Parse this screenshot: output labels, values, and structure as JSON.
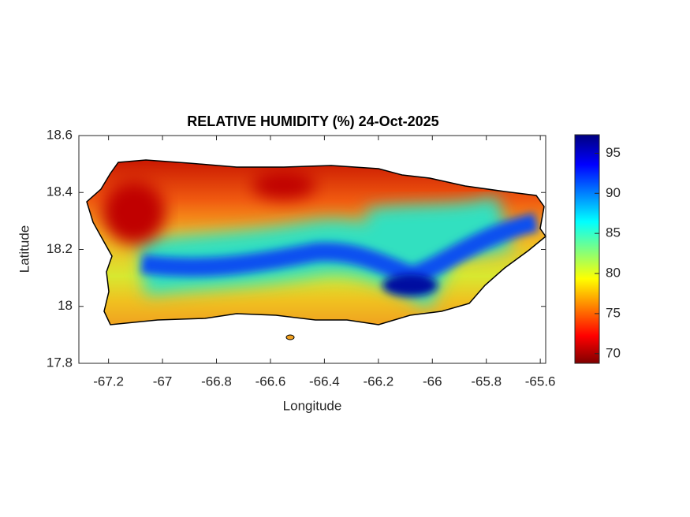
{
  "chart_data": {
    "type": "map",
    "title": "RELATIVE HUMIDITY (%) 24-Oct-2025",
    "x_label": "Longitude",
    "y_label": "Latitude",
    "xlim": [
      -67.31,
      -65.58
    ],
    "xticks": [
      -67.2,
      -67,
      -66.8,
      -66.6,
      -66.4,
      -66.2,
      -66,
      -65.8,
      -65.6
    ],
    "ylim": [
      17.8,
      18.6
    ],
    "yticks": [
      17.8,
      18,
      18.2,
      18.4,
      18.6
    ],
    "colorbar": {
      "lim": [
        68.8,
        97.3
      ],
      "ticks": [
        70,
        75,
        80,
        85,
        90,
        95
      ]
    }
  }
}
